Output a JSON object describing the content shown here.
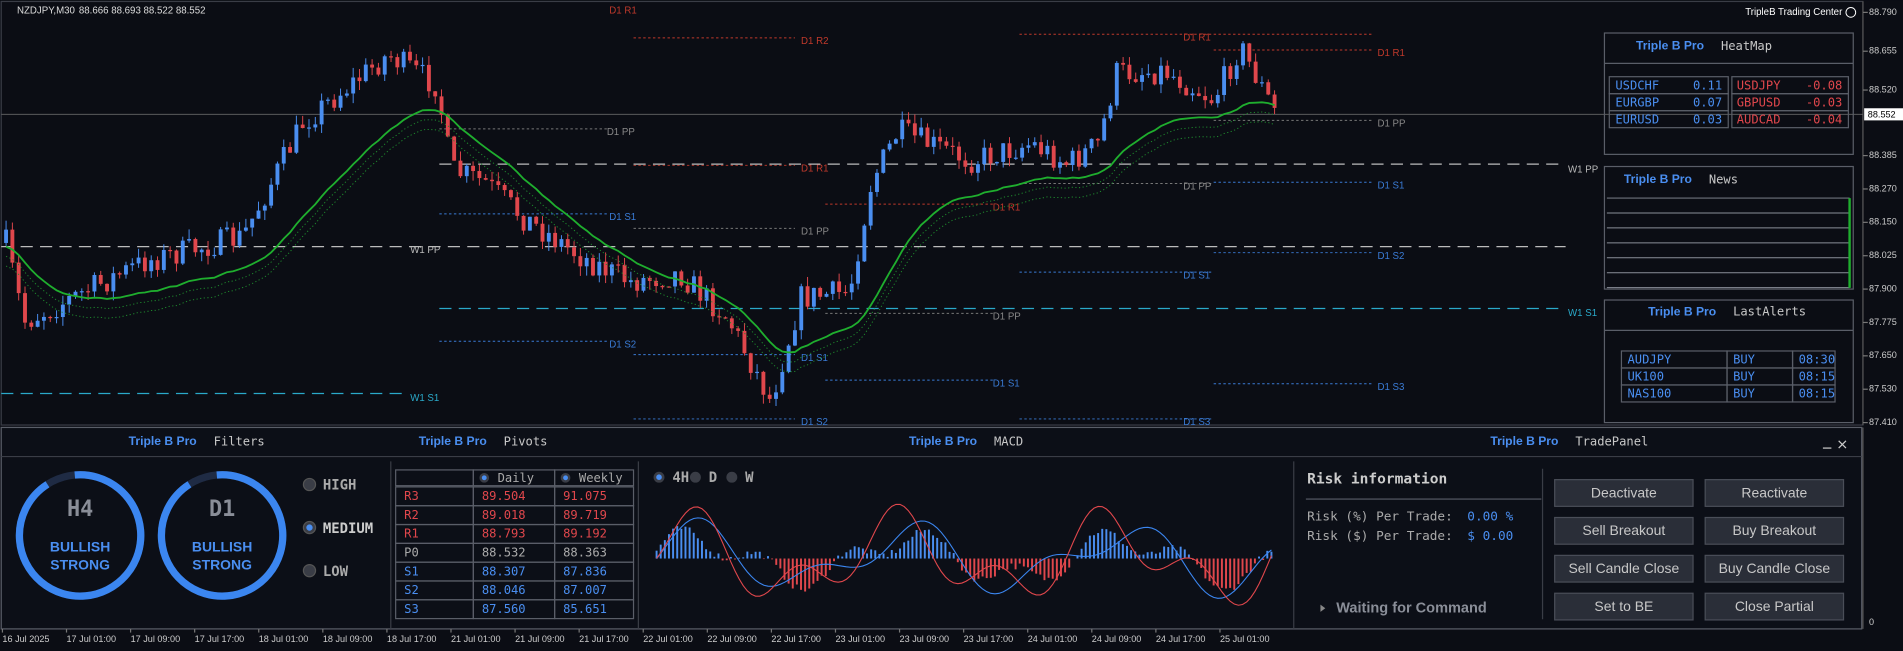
{
  "symbol_bar": {
    "symbol": "NZDJPY,M30",
    "ohlc": "88.666 88.693 88.522 88.552"
  },
  "brand": "TripleB Trading Center",
  "brand_pro": "Triple B Pro",
  "price_axis": {
    "ticks": [
      "88.790",
      "88.655",
      "88.520",
      "88.385",
      "88.270",
      "88.150",
      "88.025",
      "87.900",
      "87.775",
      "87.650",
      "87.530",
      "87.410"
    ],
    "current": "88.552"
  },
  "time_axis": [
    "16 Jul 2025",
    "17 Jul 01:00",
    "17 Jul 09:00",
    "17 Jul 17:00",
    "18 Jul 01:00",
    "18 Jul 09:00",
    "18 Jul 17:00",
    "21 Jul 01:00",
    "21 Jul 09:00",
    "21 Jul 17:00",
    "22 Jul 01:00",
    "22 Jul 09:00",
    "22 Jul 17:00",
    "23 Jul 01:00",
    "23 Jul 09:00",
    "23 Jul 17:00",
    "24 Jul 01:00",
    "24 Jul 09:00",
    "24 Jul 17:00",
    "25 Jul 01:00"
  ],
  "pivot_labels": {
    "d1_r1": "D1 R1",
    "d1_r2": "D1 R2",
    "d1_pp": "D1 PP",
    "d1_s1": "D1 S1",
    "d1_s2": "D1 S2",
    "d1_s3": "D1 S3",
    "w1_pp": "W1 PP",
    "w1_s1": "W1 S1"
  },
  "heatmap": {
    "title": "HeatMap",
    "rows": [
      [
        "USDCHF",
        "0.11",
        "USDJPY",
        "-0.08"
      ],
      [
        "EURGBP",
        "0.07",
        "GBPUSD",
        "-0.03"
      ],
      [
        "EURUSD",
        "0.03",
        "AUDCAD",
        "-0.04"
      ]
    ]
  },
  "news": {
    "title": "News"
  },
  "alerts": {
    "title": "LastAlerts",
    "rows": [
      [
        "AUDJPY",
        "BUY",
        "08:30"
      ],
      [
        "UK100",
        "BUY",
        "08:15"
      ],
      [
        "NAS100",
        "BUY",
        "08:15"
      ]
    ]
  },
  "filters": {
    "title": "Filters",
    "gauges": [
      {
        "tf": "H4",
        "state": [
          "BULLISH",
          "STRONG"
        ]
      },
      {
        "tf": "D1",
        "state": [
          "BULLISH",
          "STRONG"
        ]
      }
    ],
    "levels": [
      "HIGH",
      "MEDIUM",
      "LOW"
    ],
    "selected": 1
  },
  "pivots": {
    "title": "Pivots",
    "columns": [
      "Daily",
      "Weekly"
    ],
    "rows": [
      [
        "R3",
        "89.504",
        "91.075"
      ],
      [
        "R2",
        "89.018",
        "89.719"
      ],
      [
        "R1",
        "88.793",
        "89.192"
      ],
      [
        "P0",
        "88.532",
        "88.363"
      ],
      [
        "S1",
        "88.307",
        "87.836"
      ],
      [
        "S2",
        "88.046",
        "87.007"
      ],
      [
        "S3",
        "87.560",
        "85.651"
      ]
    ]
  },
  "macd": {
    "title": "MACD",
    "timeframes": [
      "4H",
      "D",
      "W"
    ],
    "selected": 0,
    "zero": "0"
  },
  "trade_panel": {
    "title": "TradePanel",
    "risk_title": "Risk information",
    "risk_pct_label": "Risk (%) Per Trade:",
    "risk_pct": "0.00 %",
    "risk_usd_label": "Risk ($) Per Trade:",
    "risk_usd": "$ 0.00",
    "status": "Waiting for Command",
    "buttons": [
      "Deactivate",
      "Reactivate",
      "Sell Breakout",
      "Buy Breakout",
      "Sell Candle Close",
      "Buy Candle Close",
      "Set to BE",
      "Close Partial"
    ]
  }
}
